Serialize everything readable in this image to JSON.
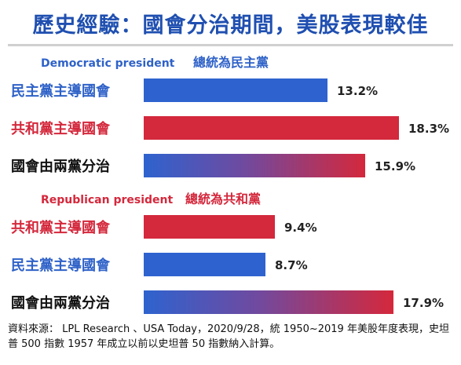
{
  "title": "歷史經驗：國會分治期間，美股表現較佳",
  "chart_data": [
    {
      "type": "bar",
      "orientation": "horizontal",
      "group_label_en": "Democratic president",
      "group_label_zh": "總統為民主黨",
      "categories": [
        "民主黨主導國會",
        "共和黨主導國會",
        "國會由兩黨分治"
      ],
      "values": [
        13.2,
        18.3,
        15.9
      ],
      "value_suffix": "%",
      "colors": [
        "#2e63cf",
        "#d4283c",
        "gradient"
      ]
    },
    {
      "type": "bar",
      "orientation": "horizontal",
      "group_label_en": "Republican president",
      "group_label_zh": "總統為共和黨",
      "categories": [
        "共和黨主導國會",
        "民主黨主導國會",
        "國會由兩黨分治"
      ],
      "values": [
        9.4,
        8.7,
        17.9
      ],
      "value_suffix": "%",
      "colors": [
        "#d4283c",
        "#2e63cf",
        "gradient"
      ]
    }
  ],
  "footnote": "資料來源： LPL Research 、USA Today，2020/9/28，統 1950~2019 年美股年度表現，史坦普 500 指數 1957 年成立以前以史坦普 50 指數納入計算。",
  "colors": {
    "title": "#1f4fb0",
    "dem_label": "#2f62c8",
    "rep_label": "#d4283c",
    "blue_bar": "#2e63cf",
    "red_bar": "#d4283c"
  }
}
